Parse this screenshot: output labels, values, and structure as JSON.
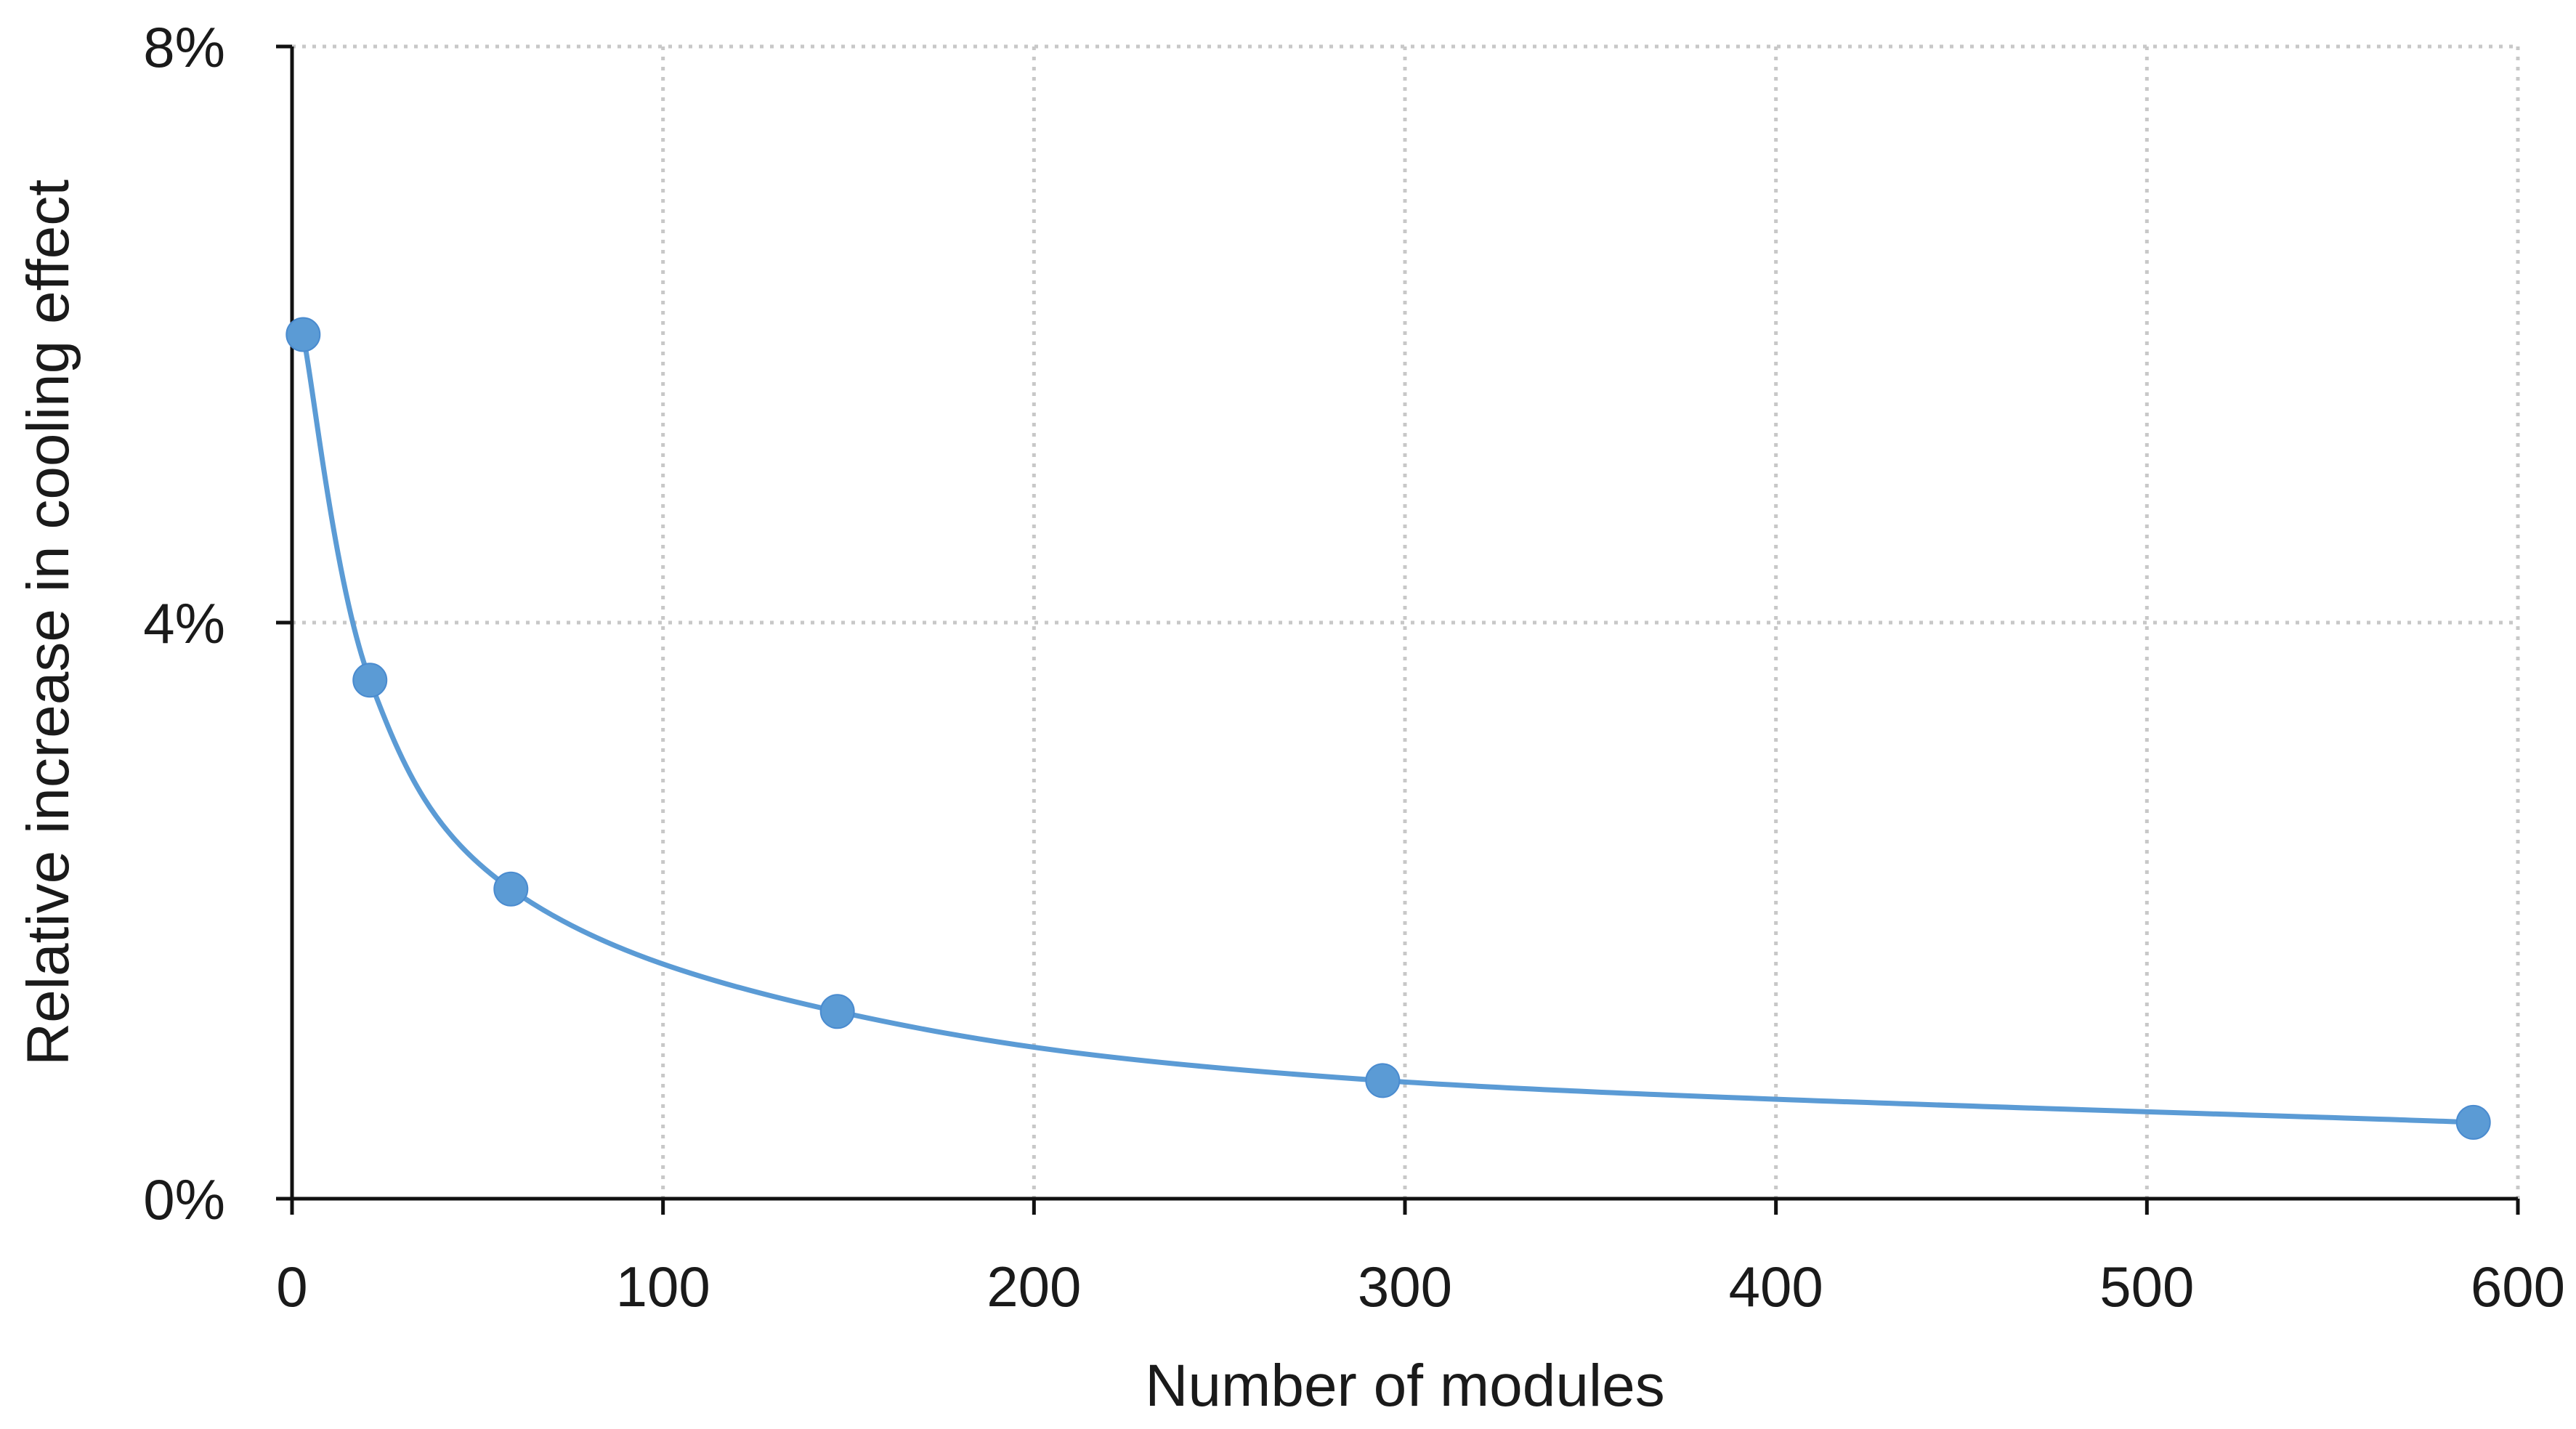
{
  "chart_data": {
    "type": "line",
    "title": "",
    "xlabel": "Number of modules",
    "ylabel": "Relative increase in cooling effect",
    "xlim": [
      0,
      600
    ],
    "ylim": [
      0,
      8
    ],
    "x_ticks": [
      0,
      100,
      200,
      300,
      400,
      500,
      600
    ],
    "x_tick_labels": [
      "0",
      "100",
      "200",
      "300",
      "400",
      "500",
      "600"
    ],
    "y_ticks": [
      0,
      4,
      8
    ],
    "y_tick_labels": [
      "0%",
      "4%",
      "8%"
    ],
    "grid": true,
    "grid_style": "dotted",
    "legend": "none",
    "series": [
      {
        "points": [
          {
            "x": 3,
            "y": 6.0
          },
          {
            "x": 21,
            "y": 3.6
          },
          {
            "x": 59,
            "y": 2.15
          },
          {
            "x": 147,
            "y": 1.3
          },
          {
            "x": 294,
            "y": 0.82
          },
          {
            "x": 588,
            "y": 0.53
          }
        ],
        "color": "#5b9bd5",
        "smooth": true,
        "markers": true
      }
    ]
  }
}
